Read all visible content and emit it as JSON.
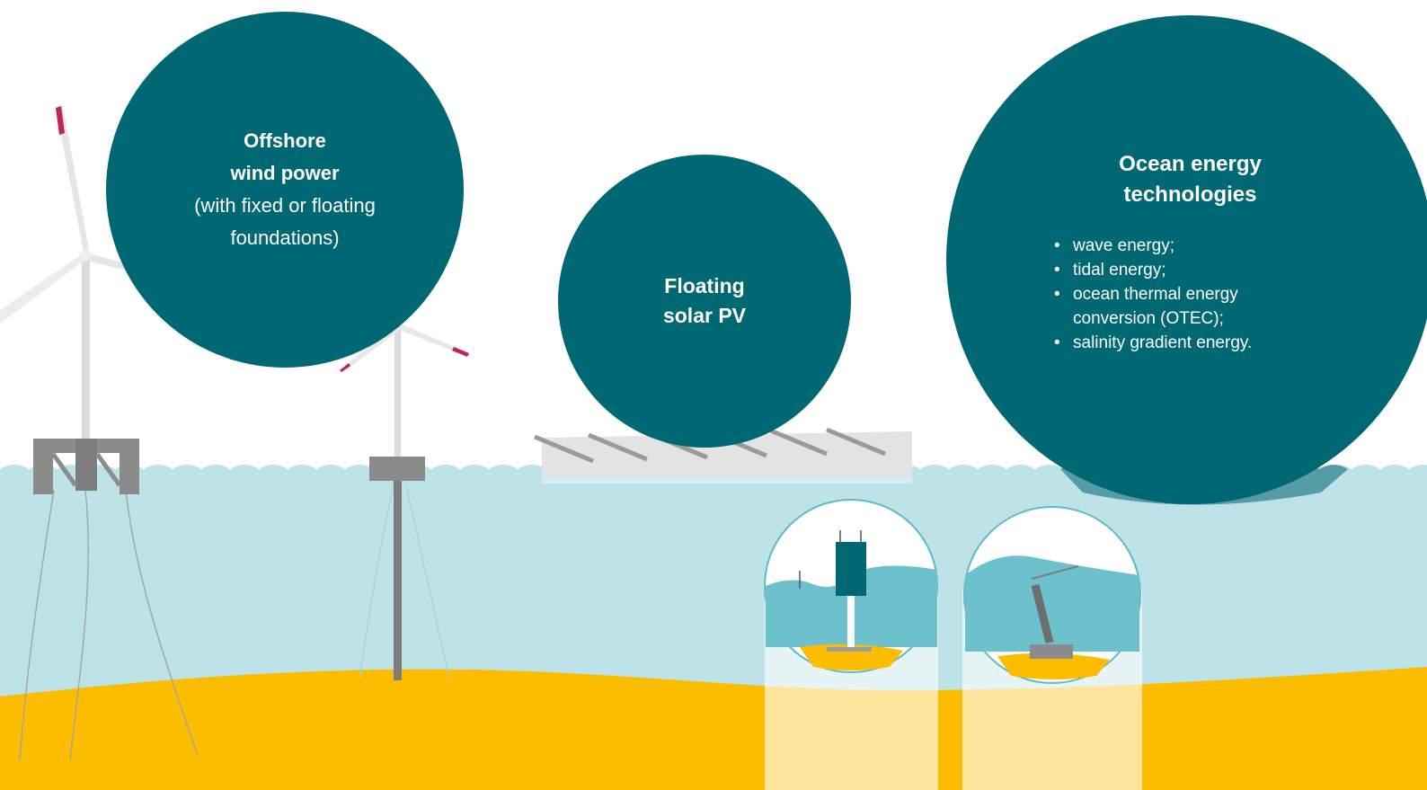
{
  "wind": {
    "title_line1": "Offshore",
    "title_line2": "wind power",
    "subtitle_line1": "(with fixed or floating",
    "subtitle_line2": "foundations)"
  },
  "solar": {
    "title_line1": "Floating",
    "title_line2": "solar PV"
  },
  "ocean": {
    "title_line1": "Ocean energy",
    "title_line2": "technologies",
    "items": [
      "wave energy;",
      "tidal energy;",
      "ocean thermal energy conversion (OTEC);",
      "salinity gradient energy."
    ]
  },
  "colors": {
    "bubble": "#006873",
    "sea": "#bde3e8",
    "seabed": "#fcbc00",
    "structure": "#8b8b8b",
    "blade_tip": "#c0245c"
  }
}
